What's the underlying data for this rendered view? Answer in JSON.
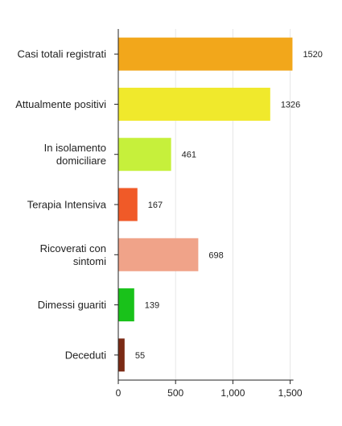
{
  "chart_data": {
    "type": "bar",
    "orientation": "horizontal",
    "categories": [
      [
        "Casi totali registrati"
      ],
      [
        "Attualmente positivi"
      ],
      [
        "In isolamento",
        "domiciliare"
      ],
      [
        "Terapia Intensiva"
      ],
      [
        "Ricoverati con",
        "sintomi"
      ],
      [
        "Dimessi guariti"
      ],
      [
        "Deceduti"
      ]
    ],
    "values": [
      1520,
      1326,
      461,
      167,
      698,
      139,
      55
    ],
    "value_labels": [
      "1520",
      "1326",
      "461",
      "167",
      "698",
      "139",
      "55"
    ],
    "colors": [
      "#f2a71b",
      "#f0e92c",
      "#c6f03b",
      "#f05a28",
      "#f0a389",
      "#19c21a",
      "#7b2a15"
    ],
    "xlim": [
      0,
      1500
    ],
    "x_ticks": [
      0,
      500,
      1000,
      1500
    ],
    "x_tick_labels": [
      "0",
      "500",
      "1,000",
      "1,500"
    ],
    "grid": true,
    "title": "",
    "xlabel": "",
    "ylabel": ""
  }
}
